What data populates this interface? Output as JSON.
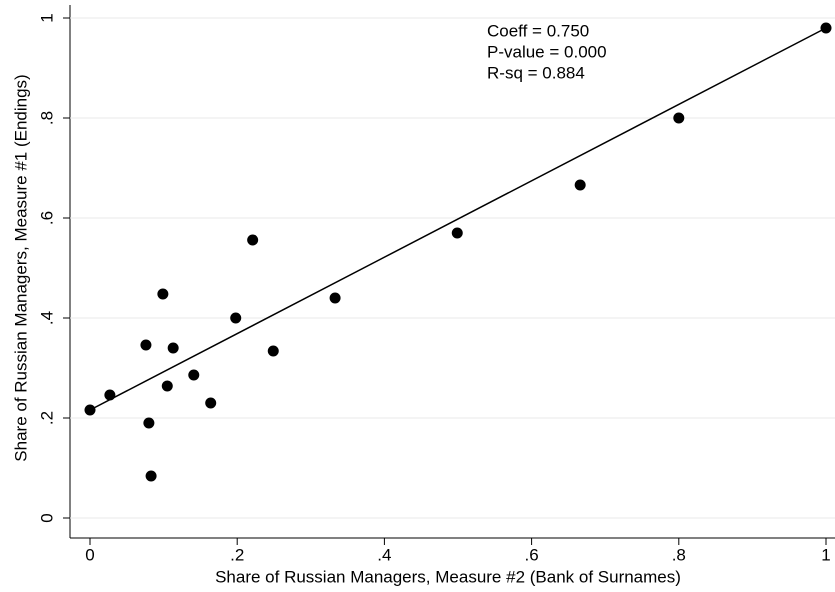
{
  "chart_data": {
    "type": "scatter",
    "x_label": "Share of Russian Managers, Measure #2 (Bank of Surnames)",
    "y_label": "Share of Russian Managers, Measure #1 (Endings)",
    "annotations": [
      "Coeff = 0.750",
      "P-value = 0.000",
      "R-sq = 0.884"
    ],
    "x": [
      0,
      0.027,
      0.076,
      0.08,
      0.083,
      0.099,
      0.105,
      0.113,
      0.141,
      0.164,
      0.198,
      0.221,
      0.249,
      0.333,
      0.499,
      0.666,
      0.8,
      1
    ],
    "values": [
      0.216,
      0.246,
      0.346,
      0.19,
      0.084,
      0.448,
      0.264,
      0.34,
      0.286,
      0.23,
      0.4,
      0.556,
      0.334,
      0.44,
      0.57,
      0.666,
      0.8,
      0.98
    ],
    "color": "#000000",
    "fit": {
      "x": [
        0,
        1
      ],
      "y": [
        0.216,
        0.98
      ],
      "color": "#000000"
    },
    "xlim": [
      0,
      1
    ],
    "ylim": [
      0,
      1
    ],
    "xticks": [
      0,
      {
        "value": 0.2,
        "label": ".2"
      },
      {
        "value": 0.4,
        "label": ".4"
      },
      {
        "value": 0.6,
        "label": ".6"
      },
      {
        "value": 0.8,
        "label": ".8"
      },
      1
    ],
    "yticks": [
      0,
      {
        "value": 0.2,
        "label": ".2"
      },
      {
        "value": 0.4,
        "label": ".4"
      },
      {
        "value": 0.6,
        "label": ".6"
      },
      {
        "value": 0.8,
        "label": ".8"
      },
      1
    ],
    "grid": true
  }
}
